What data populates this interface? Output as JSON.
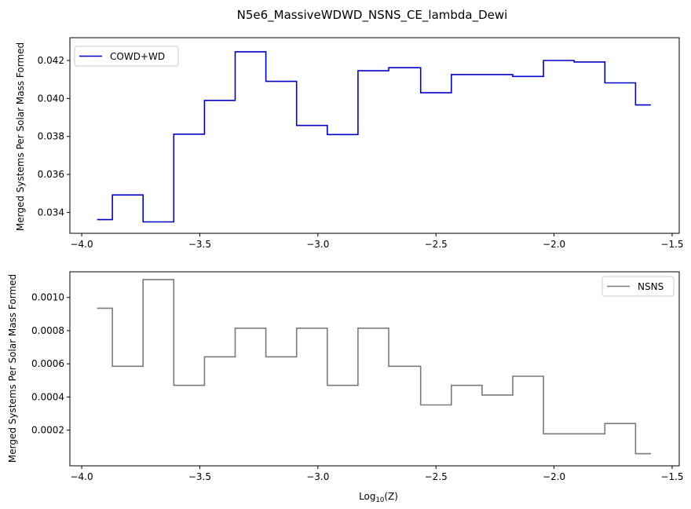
{
  "figure_title": "N5e6_MassiveWDWD_NSNS_CE_lambda_Dewi",
  "chart_data": [
    {
      "type": "step",
      "series": [
        {
          "name": "COWD+WD",
          "color": "#0000cc",
          "x": [
            -3.935,
            -3.87,
            -3.74,
            -3.61,
            -3.48,
            -3.35,
            -3.22,
            -3.09,
            -2.96,
            -2.83,
            -2.7,
            -2.565,
            -2.435,
            -2.305,
            -2.175,
            -2.045,
            -1.915,
            -1.785,
            -1.655,
            -1.59
          ],
          "values": [
            0.03362,
            0.03492,
            0.0335,
            0.03812,
            0.0399,
            0.04246,
            0.0409,
            0.03858,
            0.0381,
            0.04146,
            0.04162,
            0.0403,
            0.04126,
            0.04126,
            0.04116,
            0.042,
            0.04192,
            0.04082,
            0.03966,
            0.03966
          ]
        }
      ],
      "title": "",
      "xlabel": "",
      "ylabel": "Merged Systems Per Solar Mass Formed",
      "xlim": [
        -4.05,
        -1.47
      ],
      "ylim": [
        0.0329,
        0.0432
      ],
      "xticks": [
        -4.0,
        -3.5,
        -3.0,
        -2.5,
        -2.0,
        -1.5
      ],
      "xtick_labels": [
        "−4.0",
        "−3.5",
        "−3.0",
        "−2.5",
        "−2.0",
        "−1.5"
      ],
      "yticks": [
        0.034,
        0.036,
        0.038,
        0.04,
        0.042
      ],
      "ytick_labels": [
        "0.034",
        "0.036",
        "0.038",
        "0.040",
        "0.042"
      ],
      "legend": "top-left"
    },
    {
      "type": "step",
      "series": [
        {
          "name": "NSNS",
          "color": "#7a7a7a",
          "x": [
            -3.935,
            -3.87,
            -3.74,
            -3.61,
            -3.48,
            -3.35,
            -3.22,
            -3.09,
            -2.96,
            -2.83,
            -2.7,
            -2.565,
            -2.435,
            -2.305,
            -2.175,
            -2.045,
            -1.915,
            -1.785,
            -1.655,
            -1.59
          ],
          "values": [
            0.000935,
            0.000585,
            0.001108,
            0.00047,
            0.000642,
            0.000815,
            0.000642,
            0.000815,
            0.00047,
            0.000815,
            0.000585,
            0.000352,
            0.00047,
            0.000412,
            0.000525,
            0.000178,
            0.000178,
            0.00024,
            5.8e-05,
            5.8e-05
          ]
        }
      ],
      "title": "",
      "xlabel": "Log",
      "xlabel_sub": "10",
      "xlabel_suffix": "(Z)",
      "ylabel": "Merged Systems Per Solar Mass Formed",
      "xlim": [
        -4.05,
        -1.47
      ],
      "ylim": [
        -1.5e-05,
        0.001155
      ],
      "xticks": [
        -4.0,
        -3.5,
        -3.0,
        -2.5,
        -2.0,
        -1.5
      ],
      "xtick_labels": [
        "−4.0",
        "−3.5",
        "−3.0",
        "−2.5",
        "−2.0",
        "−1.5"
      ],
      "yticks": [
        0.0002,
        0.0004,
        0.0006,
        0.0008,
        0.001
      ],
      "ytick_labels": [
        "0.0002",
        "0.0004",
        "0.0006",
        "0.0008",
        "0.0010"
      ],
      "legend": "top-right"
    }
  ]
}
